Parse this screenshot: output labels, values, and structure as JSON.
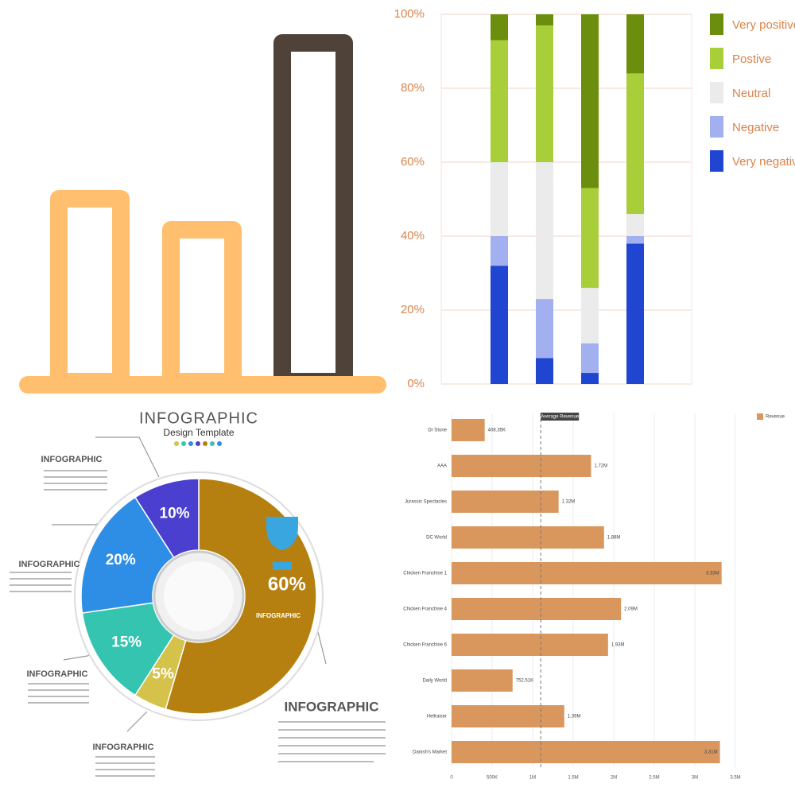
{
  "chart_data": [
    {
      "type": "stacked_bar",
      "categories": [
        null,
        null,
        null,
        null
      ],
      "series": [
        {
          "name": "Very negative",
          "color": "#1f45d1",
          "values": [
            32,
            7,
            3,
            38
          ]
        },
        {
          "name": "Negative",
          "color": "#a3b0f0",
          "values": [
            8,
            16,
            8,
            2
          ]
        },
        {
          "name": "Neutral",
          "color": "#ebebeb",
          "values": [
            20,
            37,
            15,
            6
          ]
        },
        {
          "name": "Postive",
          "color": "#a8cf3a",
          "values": [
            33,
            37,
            27,
            38
          ]
        },
        {
          "name": "Very positive",
          "color": "#6b8e0e",
          "values": [
            7,
            3,
            47,
            16
          ]
        }
      ],
      "ylim": [
        0,
        100
      ],
      "yticks": [
        {
          "value": 0,
          "label": "0%"
        },
        {
          "value": 20,
          "label": "20%"
        },
        {
          "value": 40,
          "label": "40%"
        },
        {
          "value": 60,
          "label": "60%"
        },
        {
          "value": 80,
          "label": "80%"
        },
        {
          "value": 100,
          "label": "100%"
        }
      ],
      "grid": true,
      "legend": "right"
    },
    {
      "type": "pie",
      "title": "INFOGRAPHIC",
      "subtitle": "Design Template",
      "categories": [
        null,
        null,
        null,
        null,
        null
      ],
      "values": [
        60,
        5,
        15,
        20,
        10
      ],
      "value_labels": [
        "60%",
        "5%",
        "15%",
        "20%",
        "10%"
      ],
      "colors": [
        "#b5800f",
        "#d4c24a",
        "#35c4b0",
        "#2e8ee6",
        "#4a3fcf"
      ],
      "annotations": [
        "INFOGRAPHIC",
        "INFOGRAPHIC",
        "INFOGRAPHIC",
        "INFOGRAPHIC",
        "INFOGRAPHIC",
        "INFOGRAPHIC"
      ]
    },
    {
      "type": "hbar",
      "categories": [
        "Dr Stone",
        "AAA",
        "Jurassic Spectacles",
        "DC World",
        "Chicken Franchise 1",
        "Chicken Franchise 4",
        "Chicken Franchise 6",
        "Daily World",
        "Hellraiser",
        "Danish's Market"
      ],
      "series": [
        {
          "name": "Revenue",
          "color": "#d9975e",
          "values": [
            408350,
            1720000,
            1320000,
            1880000,
            3330000,
            2090000,
            1930000,
            752510,
            1390000,
            3310000
          ],
          "value_labels": [
            "408.35K",
            "1.72M",
            "1.32M",
            "1.88M",
            "3.33M",
            "2.09M",
            "1.93M",
            "752.51K",
            "1.39M",
            "3.31M"
          ]
        }
      ],
      "average": 1100000,
      "average_label": "Average Revenue",
      "xlim": [
        0,
        3500000
      ],
      "xticks": [
        0,
        {
          "value": 500000,
          "label": "500K"
        },
        {
          "value": 1000000,
          "label": "1M"
        },
        {
          "value": 1500000,
          "label": "1.5M"
        },
        {
          "value": 2000000,
          "label": "2M"
        },
        {
          "value": 2500000,
          "label": "2.5M"
        },
        {
          "value": 3000000,
          "label": "3M"
        },
        {
          "value": 3500000,
          "label": "3.5M"
        }
      ],
      "grid": true,
      "legend": "top-right"
    }
  ]
}
